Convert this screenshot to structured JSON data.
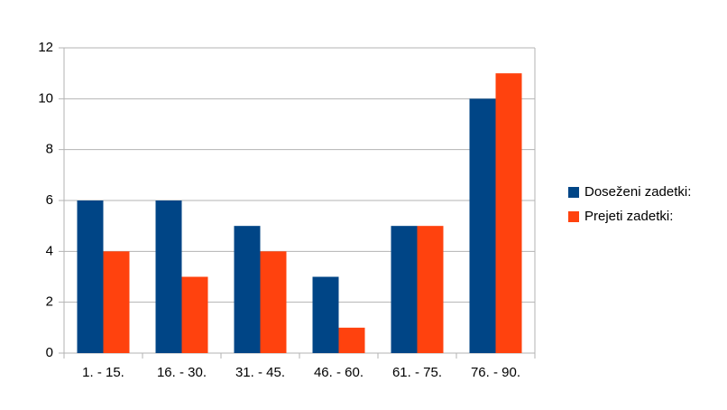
{
  "chart_data": {
    "type": "bar",
    "categories": [
      "1. - 15.",
      "16. - 30.",
      "31. - 45.",
      "46. - 60.",
      "61. - 75.",
      "76. - 90."
    ],
    "series": [
      {
        "name": "Doseženi zadetki:",
        "color": "#004586",
        "values": [
          6,
          6,
          5,
          3,
          5,
          10
        ]
      },
      {
        "name": "Prejeti zadetki:",
        "color": "#ff420e",
        "values": [
          4,
          3,
          4,
          1,
          5,
          11
        ]
      }
    ],
    "ylim": [
      0,
      12
    ],
    "yticks": [
      0,
      2,
      4,
      6,
      8,
      10,
      12
    ],
    "grid": true,
    "legend": "right"
  }
}
